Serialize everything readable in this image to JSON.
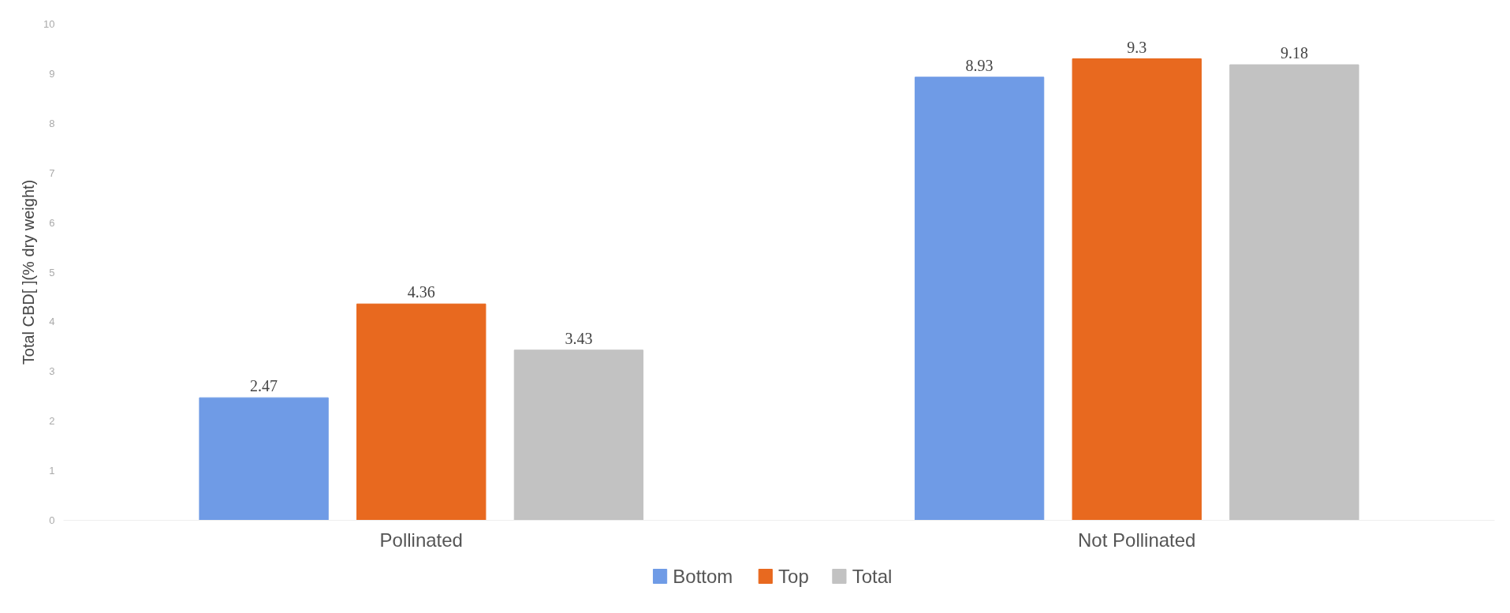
{
  "chart_data": {
    "type": "bar",
    "ylabel": "Total CBD[ ](% dry weight)",
    "categories": [
      "Pollinated",
      "Not Pollinated"
    ],
    "series": [
      {
        "name": "Bottom",
        "color": "#6f9be6",
        "values": [
          2.47,
          8.93
        ]
      },
      {
        "name": "Top",
        "color": "#e8691f",
        "values": [
          4.36,
          9.3
        ]
      },
      {
        "name": "Total",
        "color": "#c2c2c2",
        "values": [
          3.43,
          9.18
        ]
      }
    ],
    "ylim": [
      0,
      10
    ],
    "yticks": [
      0,
      1,
      2,
      3,
      4,
      5,
      6,
      7,
      8,
      9,
      10
    ],
    "data_labels": true,
    "grid": false,
    "legend": "bottom"
  }
}
